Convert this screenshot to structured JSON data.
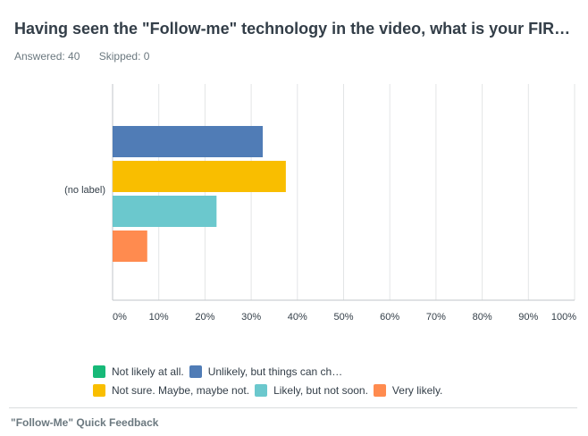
{
  "question": {
    "title": "Having seen the \"Follow-me\" technology in the video, what is your FIR…"
  },
  "stats": {
    "answered": "Answered: 40",
    "skipped": "Skipped: 0"
  },
  "chart_data": {
    "type": "bar",
    "orientation": "horizontal",
    "categories": [
      "(no label)"
    ],
    "series": [
      {
        "name": "Not likely at all.",
        "values": [
          0
        ],
        "color": "#17b978"
      },
      {
        "name": "Unlikely, but things can ch…",
        "values": [
          32.5
        ],
        "color": "#507cb6"
      },
      {
        "name": "Not sure. Maybe, maybe not.",
        "values": [
          37.5
        ],
        "color": "#f9be00"
      },
      {
        "name": "Likely, but not soon.",
        "values": [
          22.5
        ],
        "color": "#6bc8cd"
      },
      {
        "name": "Very likely.",
        "values": [
          7.5
        ],
        "color": "#ff8b4f"
      }
    ],
    "xlim": [
      0,
      100
    ],
    "xticks": [
      "0%",
      "10%",
      "20%",
      "30%",
      "40%",
      "50%",
      "60%",
      "70%",
      "80%",
      "90%",
      "100%"
    ],
    "grid": true,
    "legend_position": "bottom"
  },
  "legend": {
    "rows": [
      [
        {
          "label": "Not likely at all.",
          "color": "#17b978"
        },
        {
          "label": "Unlikely, but things can ch…",
          "color": "#507cb6"
        }
      ],
      [
        {
          "label": "Not sure. Maybe, maybe not.",
          "color": "#f9be00"
        },
        {
          "label": "Likely, but not soon.",
          "color": "#6bc8cd"
        },
        {
          "label": "Very likely.",
          "color": "#ff8b4f"
        }
      ]
    ]
  },
  "footer": {
    "survey_name": "\"Follow-Me\" Quick Feedback"
  }
}
